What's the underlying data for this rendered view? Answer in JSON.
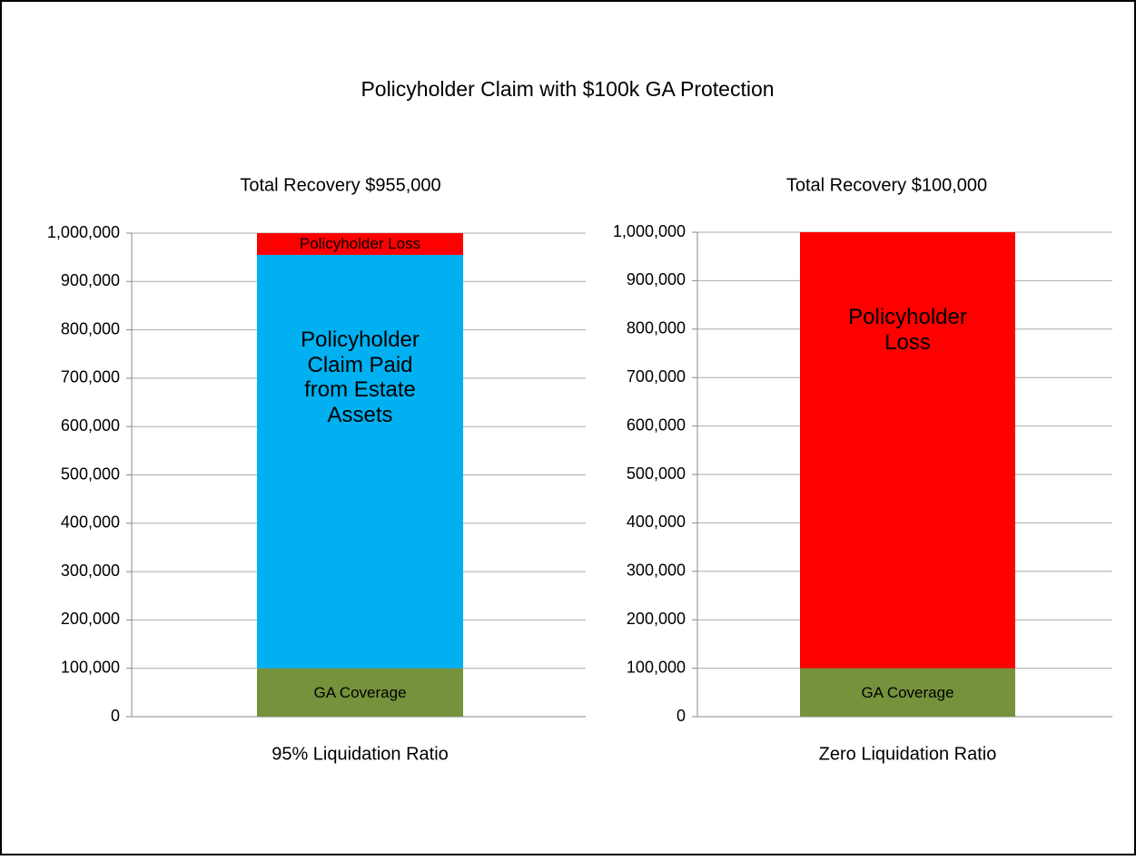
{
  "title": "Policyholder Claim with $100k GA Protection",
  "chart_data": [
    {
      "type": "stacked_bar",
      "title": "Total Recovery $955,000",
      "categories": [
        "95% Liquidation Ratio"
      ],
      "series": [
        {
          "name": "GA Coverage",
          "color": "#76923c",
          "values": [
            100000
          ]
        },
        {
          "name": "Policyholder Claim Paid from Estate Assets",
          "color": "#00b0f0",
          "values": [
            855000
          ]
        },
        {
          "name": "Policyholder Loss",
          "color": "#ff0000",
          "values": [
            45000
          ]
        }
      ],
      "ylim": [
        0,
        1000000
      ],
      "yticks": [
        0,
        {
          "value": 100000,
          "label": "100,000"
        },
        {
          "value": 200000,
          "label": "200,000"
        },
        {
          "value": 300000,
          "label": "300,000"
        },
        {
          "value": 400000,
          "label": "400,000"
        },
        {
          "value": 500000,
          "label": "500,000"
        },
        {
          "value": 600000,
          "label": "600,000"
        },
        {
          "value": 700000,
          "label": "700,000"
        },
        {
          "value": 800000,
          "label": "800,000"
        },
        {
          "value": 900000,
          "label": "900,000"
        },
        {
          "value": 1000000,
          "label": "1,000,000"
        }
      ],
      "grid": true
    },
    {
      "type": "stacked_bar",
      "title": "Total Recovery $100,000",
      "categories": [
        "Zero Liquidation Ratio"
      ],
      "series": [
        {
          "name": "GA Coverage",
          "color": "#76923c",
          "values": [
            100000
          ]
        },
        {
          "name": "Policyholder Loss",
          "color": "#ff0000",
          "values": [
            900000
          ]
        }
      ],
      "ylim": [
        0,
        1000000
      ],
      "yticks": [
        0,
        {
          "value": 100000,
          "label": "100,000"
        },
        {
          "value": 200000,
          "label": "200,000"
        },
        {
          "value": 300000,
          "label": "300,000"
        },
        {
          "value": 400000,
          "label": "400,000"
        },
        {
          "value": 500000,
          "label": "500,000"
        },
        {
          "value": 600000,
          "label": "600,000"
        },
        {
          "value": 700000,
          "label": "700,000"
        },
        {
          "value": 800000,
          "label": "800,000"
        },
        {
          "value": 900000,
          "label": "900,000"
        },
        {
          "value": 1000000,
          "label": "1,000,000"
        }
      ],
      "grid": true
    }
  ]
}
